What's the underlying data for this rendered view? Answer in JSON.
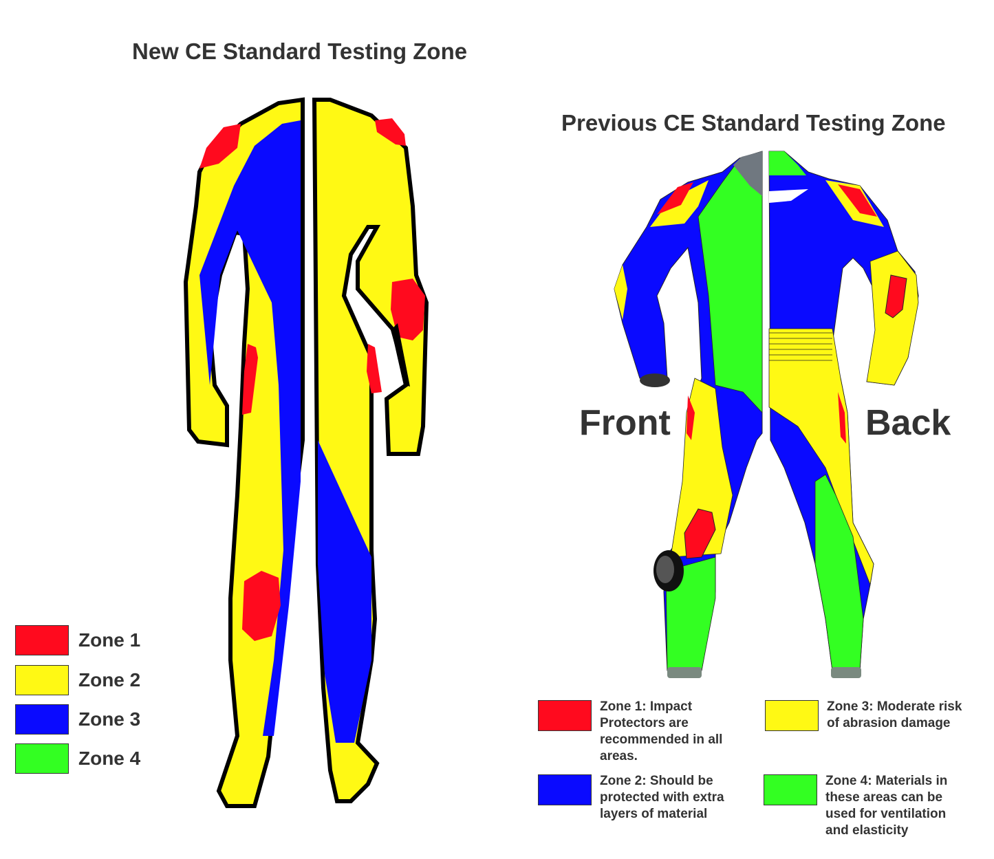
{
  "titles": {
    "new": "New CE Standard Testing Zone",
    "previous": "Previous CE Standard Testing Zone"
  },
  "views": {
    "front": "Front",
    "back": "Back"
  },
  "colors": {
    "zone1": "#ff0a1e",
    "zone2": "#fff914",
    "zone3": "#0a0aff",
    "zone4": "#33ff22",
    "outline": "#000000",
    "grey": "#707880"
  },
  "legend_new": [
    {
      "label": "Zone 1",
      "color": "#ff0a1e"
    },
    {
      "label": "Zone 2",
      "color": "#fff914"
    },
    {
      "label": "Zone 3",
      "color": "#0a0aff"
    },
    {
      "label": "Zone 4",
      "color": "#33ff22"
    }
  ],
  "legend_previous": [
    {
      "label": "Zone 1: Impact\nProtectors are\nrecommended in all\nareas.",
      "color": "#ff0a1e"
    },
    {
      "label": "Zone 3: Moderate risk\nof abrasion damage",
      "color": "#fff914"
    },
    {
      "label": "Zone 2: Should be\nprotected with extra\nlayers of material",
      "color": "#0a0aff"
    },
    {
      "label": "Zone 4: Materials in\nthese areas can be\nused for ventilation\nand elasticity",
      "color": "#33ff22"
    }
  ]
}
